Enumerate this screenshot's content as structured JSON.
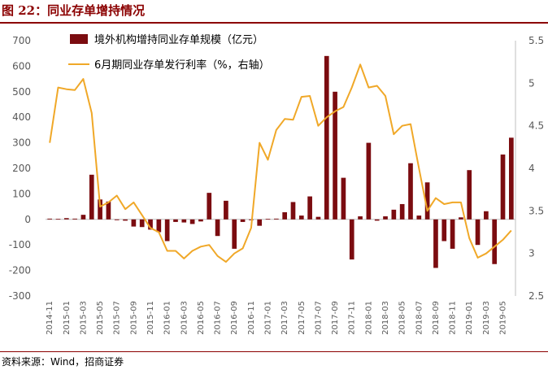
{
  "header": {
    "title": "图 22：同业存单增持情况"
  },
  "footer": {
    "source": "资料来源：Wind，招商证券"
  },
  "colors": {
    "bar": "#7b0c10",
    "line": "#f0a828",
    "brand": "#8b0000"
  },
  "chart_data": {
    "type": "bar+line",
    "title": "",
    "left_axis": {
      "ylim": [
        -300,
        700
      ],
      "ticks": [
        "700",
        "600",
        "500",
        "400",
        "300",
        "200",
        "100",
        "0",
        "-100",
        "-200",
        "-300"
      ]
    },
    "right_axis": {
      "ylim": [
        2.5,
        5.5
      ],
      "ticks": [
        "5.5",
        "5",
        "4.5",
        "4",
        "3.5",
        "3",
        "2.5"
      ]
    },
    "x_tick_labels": [
      "2014-11",
      "2015-01",
      "2015-03",
      "2015-05",
      "2015-07",
      "2015-09",
      "2015-11",
      "2016-01",
      "2016-03",
      "2016-05",
      "2016-07",
      "2016-09",
      "2016-11",
      "2017-01",
      "2017-03",
      "2017-05",
      "2017-07",
      "2017-09",
      "2017-11",
      "2018-01",
      "2018-03",
      "2018-05",
      "2018-07",
      "2018-09",
      "2018-11",
      "2019-01",
      "2019-03",
      "2019-05"
    ],
    "categories": [
      "2014-11",
      "2014-12",
      "2015-01",
      "2015-02",
      "2015-03",
      "2015-04",
      "2015-05",
      "2015-06",
      "2015-07",
      "2015-08",
      "2015-09",
      "2015-10",
      "2015-11",
      "2015-12",
      "2016-01",
      "2016-02",
      "2016-03",
      "2016-04",
      "2016-05",
      "2016-06",
      "2016-07",
      "2016-08",
      "2016-09",
      "2016-10",
      "2016-11",
      "2016-12",
      "2017-01",
      "2017-02",
      "2017-03",
      "2017-04",
      "2017-05",
      "2017-06",
      "2017-07",
      "2017-08",
      "2017-09",
      "2017-10",
      "2017-11",
      "2017-12",
      "2018-01",
      "2018-02",
      "2018-03",
      "2018-04",
      "2018-05",
      "2018-06",
      "2018-07",
      "2018-08",
      "2018-09",
      "2018-10",
      "2018-11",
      "2018-12",
      "2019-01",
      "2019-02",
      "2019-03",
      "2019-04",
      "2019-05",
      "2019-06"
    ],
    "legend_position": "top",
    "series": [
      {
        "name": "境外机构增持同业存单规模（亿元）",
        "type": "bar",
        "axis": "left",
        "values": [
          3,
          2,
          5,
          3,
          18,
          175,
          78,
          70,
          -3,
          -5,
          -28,
          -30,
          -40,
          -50,
          -85,
          -10,
          -12,
          -18,
          -8,
          104,
          -65,
          73,
          -115,
          -10,
          -3,
          -25,
          2,
          3,
          28,
          68,
          15,
          90,
          10,
          640,
          500,
          163,
          -157,
          12,
          300,
          -5,
          12,
          38,
          60,
          220,
          15,
          145,
          -190,
          -85,
          -115,
          8,
          193,
          -100,
          32,
          -175,
          254,
          320
        ]
      },
      {
        "name": "6月期同业存单发行利率（%，右轴）",
        "type": "line",
        "axis": "right",
        "values": [
          4.3,
          4.95,
          4.93,
          4.92,
          5.05,
          4.65,
          3.55,
          3.6,
          3.68,
          3.52,
          3.6,
          3.45,
          3.3,
          3.25,
          3.03,
          3.03,
          2.94,
          3.03,
          3.08,
          3.1,
          2.97,
          2.9,
          3.0,
          3.06,
          3.3,
          4.3,
          4.1,
          4.45,
          4.58,
          4.57,
          4.84,
          4.85,
          4.5,
          4.6,
          4.67,
          4.72,
          4.95,
          5.22,
          4.95,
          4.97,
          4.85,
          4.4,
          4.5,
          4.52,
          4.0,
          3.5,
          3.65,
          3.58,
          3.6,
          3.6,
          3.18,
          2.95,
          3.0,
          3.08,
          3.16,
          3.27
        ]
      }
    ]
  }
}
